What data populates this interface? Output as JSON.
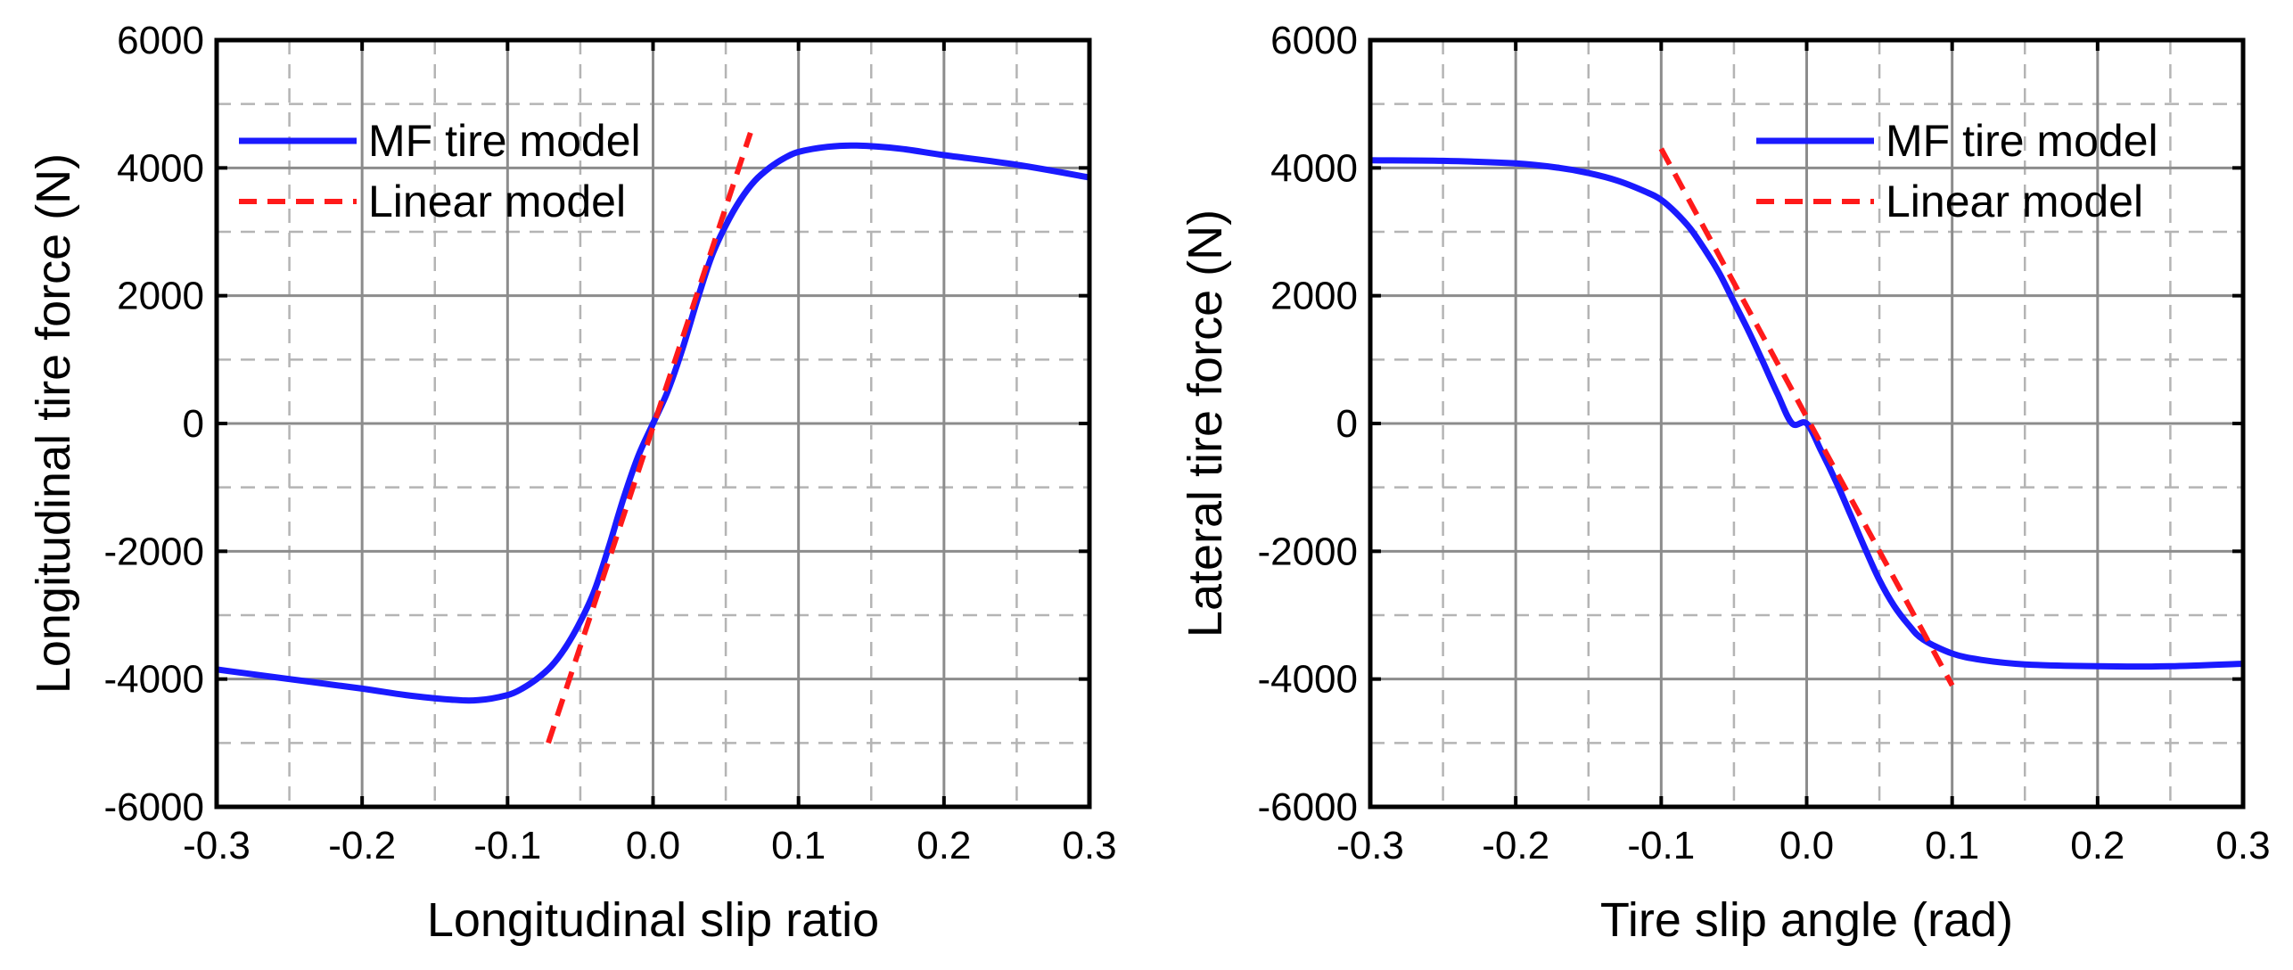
{
  "chart_data": [
    {
      "type": "line",
      "name": "longitudinal",
      "xlabel": "Longitudinal slip ratio",
      "ylabel": "Longitudinal tire force (N)",
      "xlim": [
        -0.3,
        0.3
      ],
      "ylim": [
        -6000,
        6000
      ],
      "xticks": [
        -0.3,
        -0.2,
        -0.1,
        0.0,
        0.1,
        0.2,
        0.3
      ],
      "xtick_labels": [
        "-0.3",
        "-0.2",
        "-0.1",
        "0.0",
        "0.1",
        "0.2",
        "0.3"
      ],
      "yticks": [
        -6000,
        -4000,
        -2000,
        0,
        2000,
        4000,
        6000
      ],
      "ytick_labels": [
        "-6000",
        "-4000",
        "-2000",
        "0",
        "2000",
        "4000",
        "6000"
      ],
      "grid": true,
      "legend_position": "top-left",
      "series": [
        {
          "name": "MF tire model",
          "style": "solid",
          "color": "#1a1aff",
          "x": [
            -0.3,
            -0.25,
            -0.2,
            -0.17,
            -0.14,
            -0.12,
            -0.1,
            -0.09,
            -0.08,
            -0.07,
            -0.06,
            -0.05,
            -0.04,
            -0.03,
            -0.02,
            -0.01,
            0.0,
            0.01,
            0.02,
            0.03,
            0.04,
            0.05,
            0.06,
            0.07,
            0.08,
            0.09,
            0.1,
            0.12,
            0.14,
            0.17,
            0.2,
            0.25,
            0.3
          ],
          "y": [
            -3850,
            -4000,
            -4150,
            -4250,
            -4320,
            -4330,
            -4250,
            -4150,
            -4000,
            -3800,
            -3500,
            -3100,
            -2600,
            -1900,
            -1150,
            -500,
            0,
            500,
            1150,
            1900,
            2600,
            3100,
            3500,
            3800,
            4000,
            4150,
            4250,
            4330,
            4350,
            4300,
            4200,
            4050,
            3850
          ]
        },
        {
          "name": "Linear model",
          "style": "dashed",
          "color": "#ff1a1a",
          "x": [
            -0.072,
            0.067
          ],
          "y": [
            -5000,
            4550
          ]
        }
      ]
    },
    {
      "type": "line",
      "name": "lateral",
      "xlabel": "Tire slip angle (rad)",
      "ylabel": "Lateral tire force (N)",
      "xlim": [
        -0.3,
        0.3
      ],
      "ylim": [
        -6000,
        6000
      ],
      "xticks": [
        -0.3,
        -0.2,
        -0.1,
        0.0,
        0.1,
        0.2,
        0.3
      ],
      "xtick_labels": [
        "-0.3",
        "-0.2",
        "-0.1",
        "0.0",
        "0.1",
        "0.2",
        "0.3"
      ],
      "yticks": [
        -6000,
        -4000,
        -2000,
        0,
        2000,
        4000,
        6000
      ],
      "ytick_labels": [
        "-6000",
        "-4000",
        "-2000",
        "0",
        "2000",
        "4000",
        "6000"
      ],
      "grid": true,
      "legend_position": "top-right",
      "series": [
        {
          "name": "MF tire model",
          "style": "solid",
          "color": "#1a1aff",
          "x": [
            -0.3,
            -0.25,
            -0.2,
            -0.17,
            -0.15,
            -0.13,
            -0.11,
            -0.1,
            -0.09,
            -0.08,
            -0.07,
            -0.06,
            -0.05,
            -0.04,
            -0.03,
            -0.02,
            -0.01,
            0.0,
            0.01,
            0.02,
            0.03,
            0.04,
            0.05,
            0.06,
            0.07,
            0.08,
            0.1,
            0.12,
            0.15,
            0.2,
            0.25,
            0.3
          ],
          "y": [
            4120,
            4110,
            4070,
            4000,
            3920,
            3800,
            3620,
            3500,
            3300,
            3050,
            2720,
            2350,
            1900,
            1450,
            960,
            460,
            0,
            0,
            -430,
            -900,
            -1420,
            -1950,
            -2450,
            -2850,
            -3150,
            -3380,
            -3600,
            -3700,
            -3770,
            -3800,
            -3800,
            -3760
          ]
        },
        {
          "name": "Linear model",
          "style": "dashed",
          "color": "#ff1a1a",
          "x": [
            -0.1,
            0.1
          ],
          "y": [
            4300,
            -4100
          ]
        }
      ]
    }
  ]
}
